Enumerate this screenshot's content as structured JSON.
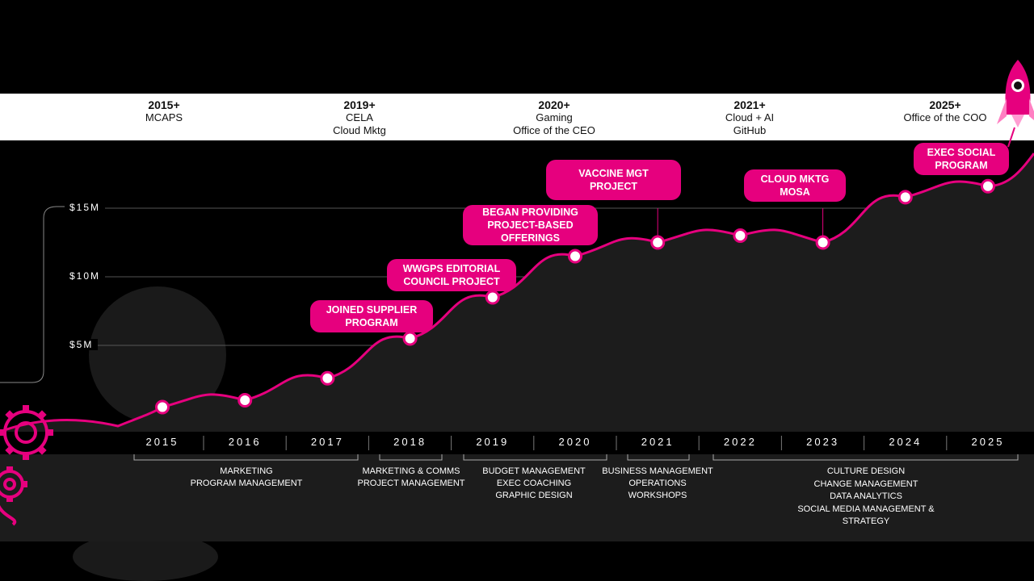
{
  "colors": {
    "accent": "#e6007e",
    "background": "#000000",
    "area": "#1c1c1c"
  },
  "eras": [
    {
      "year": "2015+",
      "lines": [
        "MCAPS"
      ]
    },
    {
      "year": "2019+",
      "lines": [
        "CELA",
        "Cloud Mktg"
      ]
    },
    {
      "year": "2020+",
      "lines": [
        "Gaming",
        "Office of the CEO"
      ]
    },
    {
      "year": "2021+",
      "lines": [
        "Cloud + AI",
        "GitHub"
      ]
    },
    {
      "year": "2025+",
      "lines": [
        "Office of the COO"
      ]
    }
  ],
  "milestones": [
    {
      "label": "JOINED SUPPLIER\nPROGRAM",
      "year": "2018"
    },
    {
      "label": "WWGPS EDITORIAL\nCOUNCIL PROJECT",
      "year": "2019"
    },
    {
      "label": "BEGAN PROVIDING\nPROJECT-BASED\nOFFERINGS",
      "year": "2020"
    },
    {
      "label": "VACCINE MGT\nPROJECT",
      "year": "2021"
    },
    {
      "label": "CLOUD MKTG\nMOSA",
      "year": "2023"
    },
    {
      "label": "EXEC SOCIAL\nPROGRAM",
      "year": "2025"
    }
  ],
  "skills": [
    {
      "lines": [
        "MARKETING",
        "PROGRAM MANAGEMENT"
      ]
    },
    {
      "lines": [
        "MARKETING & COMMS",
        "PROJECT MANAGEMENT"
      ]
    },
    {
      "lines": [
        "BUDGET MANAGEMENT",
        "EXEC COACHING",
        "GRAPHIC DESIGN"
      ]
    },
    {
      "lines": [
        "BUSINESS MANAGEMENT",
        "OPERATIONS",
        "WORKSHOPS"
      ]
    },
    {
      "lines": [
        "CULTURE DESIGN",
        "CHANGE MANAGEMENT",
        "DATA ANALYTICS",
        "SOCIAL MEDIA MANAGEMENT & STRATEGY"
      ]
    }
  ],
  "chart_data": {
    "type": "line",
    "title": "",
    "xlabel": "",
    "ylabel": "",
    "y_tick_labels": [
      "$15M",
      "$10M",
      "$5M"
    ],
    "y_ticks": [
      15,
      10,
      5
    ],
    "categories": [
      "2015",
      "2016",
      "2017",
      "2018",
      "2019",
      "2020",
      "2021",
      "2022",
      "2023",
      "2024",
      "2025"
    ],
    "values": [
      0.5,
      1.0,
      2.6,
      5.5,
      8.5,
      11.5,
      12.5,
      13.0,
      12.5,
      15.8,
      16.6
    ],
    "ylim": [
      0,
      20
    ],
    "grid": true
  }
}
